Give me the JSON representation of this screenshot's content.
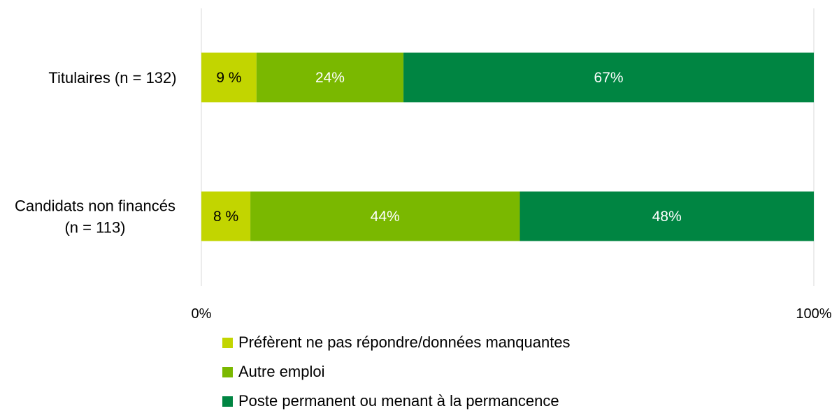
{
  "chart_data": {
    "type": "bar",
    "orientation": "horizontal",
    "stacked": true,
    "percent_stacked": true,
    "categories": [
      "Titulaires (n = 132)",
      "Candidats non financés (n = 113)"
    ],
    "category_lines": [
      [
        "Titulaires (n = 132)"
      ],
      [
        "Candidats non financés",
        "(n = 113)"
      ]
    ],
    "series": [
      {
        "name": "Préfèrent ne pas répondre/données manquantes",
        "values": [
          9,
          8
        ],
        "labels": [
          "9 %",
          "8 %"
        ],
        "color": "#c2d500",
        "label_color": "#000000"
      },
      {
        "name": "Autre emploi",
        "values": [
          24,
          44
        ],
        "labels": [
          "24%",
          "44%"
        ],
        "color": "#7ab800",
        "label_color": "#ffffff"
      },
      {
        "name": "Poste permanent ou menant à la permancence",
        "values": [
          67,
          48
        ],
        "labels": [
          "67%",
          "48%"
        ],
        "color": "#008542",
        "label_color": "#ffffff"
      }
    ],
    "x_ticks": [
      "0%",
      "100%"
    ],
    "xlim": [
      0,
      100
    ],
    "gridlines": "vertical at 0% and 100%",
    "legend_position": "bottom"
  }
}
